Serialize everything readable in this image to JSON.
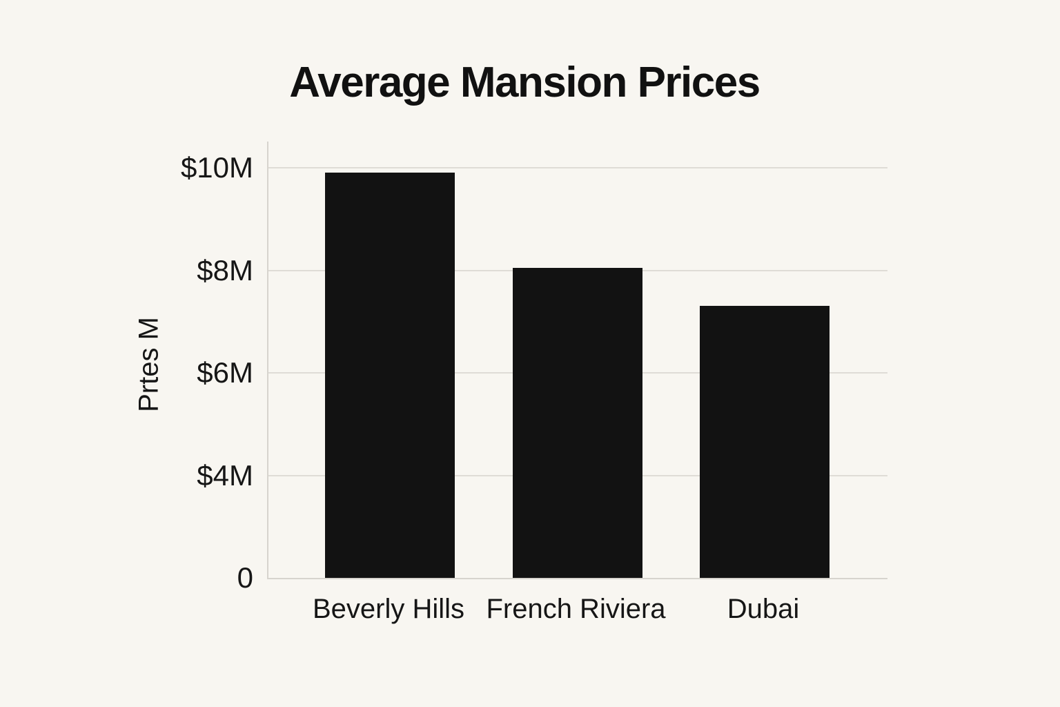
{
  "chart_data": {
    "type": "bar",
    "title": "Average Mansion Prices",
    "xlabel": "",
    "ylabel": "Prtes M",
    "categories": [
      "Beverly Hills",
      "French Riviera",
      "Dubai"
    ],
    "values": [
      9.9,
      8.05,
      7.3
    ],
    "y_ticks": [
      {
        "label": "$10M",
        "value": 10
      },
      {
        "label": "$8M",
        "value": 8
      },
      {
        "label": "$6M",
        "value": 6
      },
      {
        "label": "$4M",
        "value": 4
      },
      {
        "label": "0",
        "value": 0
      }
    ],
    "ylim": [
      0,
      10
    ],
    "grid": true,
    "legend": "none",
    "bar_color": "#121212",
    "background_color": "#f8f6f1",
    "gridline_color": "#dfdcd6",
    "axis_color": "#d7d4ce"
  }
}
